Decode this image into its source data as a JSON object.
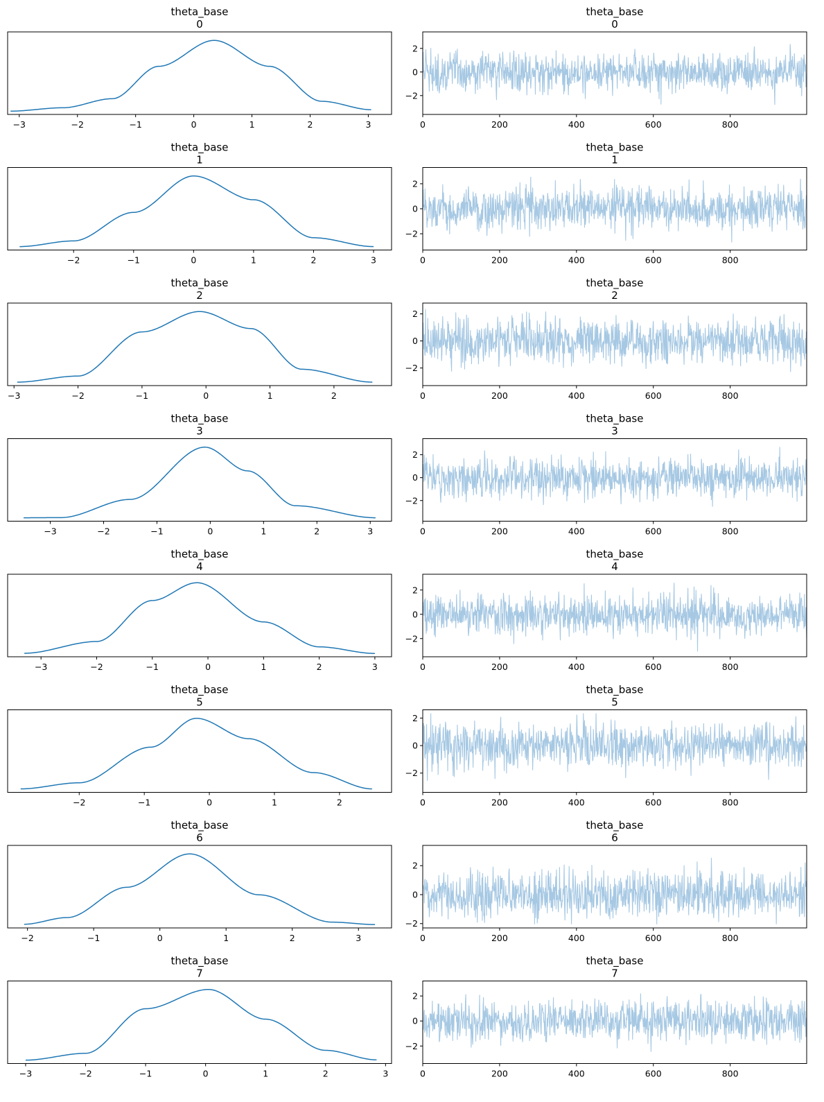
{
  "colors": {
    "kde": "#1f77b4",
    "trace": "#a6c8e3",
    "axes": "#000000",
    "background": "#ffffff"
  },
  "chart_data": [
    {
      "type": "line",
      "panel": "kde",
      "title": "theta_base",
      "subtitle": "0",
      "xlim": [
        -3.2,
        3.4
      ],
      "xticks": [
        -3,
        -2,
        -1,
        0,
        1,
        2,
        3
      ],
      "x": [
        -3.15,
        -2.25,
        -1.4,
        -0.6,
        0.35,
        1.3,
        2.2,
        3.05
      ],
      "y": [
        0.004,
        0.03,
        0.1,
        0.35,
        0.55,
        0.35,
        0.08,
        0.015
      ]
    },
    {
      "type": "line",
      "panel": "trace",
      "title": "theta_base",
      "subtitle": "0",
      "xlim": [
        0,
        999
      ],
      "ylim": [
        -3.6,
        3.4
      ],
      "xticks": [
        0,
        200,
        400,
        600,
        800
      ],
      "yticks": [
        -2,
        0,
        2
      ]
    },
    {
      "type": "line",
      "panel": "kde",
      "title": "theta_base",
      "subtitle": "1",
      "xlim": [
        -3.1,
        3.3
      ],
      "xticks": [
        -2,
        -1,
        0,
        1,
        2,
        3
      ],
      "x": [
        -2.9,
        -2.0,
        -1.0,
        0.0,
        1.0,
        2.0,
        3.0
      ],
      "y": [
        0.004,
        0.04,
        0.22,
        0.45,
        0.3,
        0.06,
        0.004
      ]
    },
    {
      "type": "line",
      "panel": "trace",
      "title": "theta_base",
      "subtitle": "1",
      "xlim": [
        0,
        999
      ],
      "ylim": [
        -3.3,
        3.3
      ],
      "xticks": [
        0,
        200,
        400,
        600,
        800
      ],
      "yticks": [
        -2,
        0,
        2
      ]
    },
    {
      "type": "line",
      "panel": "kde",
      "title": "theta_base",
      "subtitle": "2",
      "xlim": [
        -3.1,
        2.9
      ],
      "xticks": [
        -3,
        -2,
        -1,
        0,
        1,
        2
      ],
      "x": [
        -2.95,
        -2.0,
        -1.0,
        -0.1,
        0.7,
        1.5,
        2.6
      ],
      "y": [
        0.004,
        0.04,
        0.3,
        0.42,
        0.32,
        0.08,
        0.004
      ]
    },
    {
      "type": "line",
      "panel": "trace",
      "title": "theta_base",
      "subtitle": "2",
      "xlim": [
        0,
        999
      ],
      "ylim": [
        -3.3,
        2.8
      ],
      "xticks": [
        0,
        200,
        400,
        600,
        800
      ],
      "yticks": [
        -2,
        0,
        2
      ]
    },
    {
      "type": "line",
      "panel": "kde",
      "title": "theta_base",
      "subtitle": "3",
      "xlim": [
        -3.8,
        3.4
      ],
      "xticks": [
        -3,
        -2,
        -1,
        0,
        1,
        2,
        3
      ],
      "x": [
        -3.5,
        -2.8,
        -1.5,
        -0.1,
        0.7,
        1.6,
        3.1
      ],
      "y": [
        0.004,
        0.005,
        0.12,
        0.45,
        0.3,
        0.08,
        0.004
      ]
    },
    {
      "type": "line",
      "panel": "trace",
      "title": "theta_base",
      "subtitle": "3",
      "xlim": [
        0,
        999
      ],
      "ylim": [
        -3.8,
        3.4
      ],
      "xticks": [
        0,
        200,
        400,
        600,
        800
      ],
      "yticks": [
        -2,
        0,
        2
      ]
    },
    {
      "type": "line",
      "panel": "kde",
      "title": "theta_base",
      "subtitle": "4",
      "xlim": [
        -3.6,
        3.3
      ],
      "xticks": [
        -3,
        -2,
        -1,
        0,
        1,
        2,
        3
      ],
      "x": [
        -3.3,
        -2.0,
        -1.0,
        -0.2,
        1.0,
        2.0,
        3.0
      ],
      "y": [
        0.004,
        0.07,
        0.3,
        0.4,
        0.18,
        0.04,
        0.003
      ]
    },
    {
      "type": "line",
      "panel": "trace",
      "title": "theta_base",
      "subtitle": "4",
      "xlim": [
        0,
        999
      ],
      "ylim": [
        -3.5,
        3.3
      ],
      "xticks": [
        0,
        200,
        400,
        600,
        800
      ],
      "yticks": [
        -2,
        0,
        2
      ]
    },
    {
      "type": "line",
      "panel": "kde",
      "title": "theta_base",
      "subtitle": "5",
      "xlim": [
        -3.1,
        2.8
      ],
      "xticks": [
        -2,
        -1,
        0,
        1,
        2
      ],
      "x": [
        -2.9,
        -2.0,
        -0.9,
        -0.2,
        0.6,
        1.6,
        2.5
      ],
      "y": [
        0.004,
        0.04,
        0.25,
        0.42,
        0.3,
        0.1,
        0.004
      ]
    },
    {
      "type": "line",
      "panel": "trace",
      "title": "theta_base",
      "subtitle": "5",
      "xlim": [
        0,
        999
      ],
      "ylim": [
        -3.4,
        2.6
      ],
      "xticks": [
        0,
        200,
        400,
        600,
        800
      ],
      "yticks": [
        -2,
        0,
        2
      ]
    },
    {
      "type": "line",
      "panel": "kde",
      "title": "theta_base",
      "subtitle": "6",
      "xlim": [
        -2.3,
        3.5
      ],
      "xticks": [
        -2,
        -1,
        0,
        1,
        2,
        3
      ],
      "x": [
        -2.05,
        -1.4,
        -0.5,
        0.45,
        1.5,
        2.6,
        3.25
      ],
      "y": [
        0.006,
        0.05,
        0.25,
        0.47,
        0.2,
        0.02,
        0.004
      ]
    },
    {
      "type": "line",
      "panel": "trace",
      "title": "theta_base",
      "subtitle": "6",
      "xlim": [
        0,
        999
      ],
      "ylim": [
        -2.3,
        3.4
      ],
      "xticks": [
        0,
        200,
        400,
        600,
        800
      ],
      "yticks": [
        -2,
        0,
        2
      ]
    },
    {
      "type": "line",
      "panel": "kde",
      "title": "theta_base",
      "subtitle": "7",
      "xlim": [
        -3.3,
        3.1
      ],
      "xticks": [
        -3,
        -2,
        -1,
        0,
        1,
        2,
        3
      ],
      "x": [
        -3.0,
        -2.0,
        -1.0,
        0.05,
        1.0,
        2.0,
        2.85
      ],
      "y": [
        0.004,
        0.05,
        0.35,
        0.48,
        0.28,
        0.07,
        0.006
      ]
    },
    {
      "type": "line",
      "panel": "trace",
      "title": "theta_base",
      "subtitle": "7",
      "xlim": [
        0,
        999
      ],
      "ylim": [
        -3.4,
        3.2
      ],
      "xticks": [
        0,
        200,
        400,
        600,
        800
      ],
      "yticks": [
        -2,
        0,
        2
      ]
    }
  ]
}
